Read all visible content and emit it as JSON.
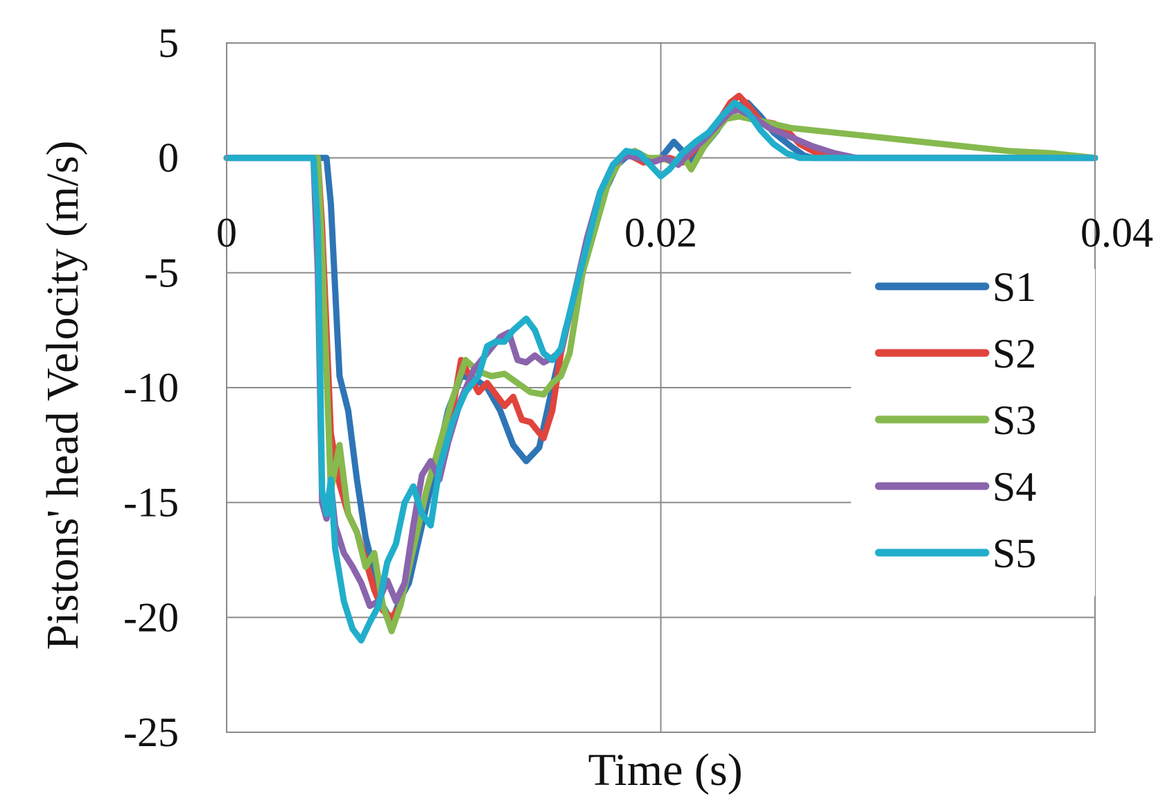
{
  "chart_data": {
    "type": "line",
    "title": "",
    "xlabel": "Time (s)",
    "ylabel": "Pistons' head Velocity (m/s)",
    "xlim": [
      0,
      0.04
    ],
    "ylim": [
      -25,
      5
    ],
    "x_ticks": [
      0,
      0.02,
      0.04
    ],
    "x_tick_labels": [
      "0",
      "0.02",
      "0.04"
    ],
    "y_ticks": [
      5,
      0,
      -5,
      -10,
      -15,
      -20,
      -25
    ],
    "y_tick_labels": [
      "5",
      "0",
      "-5",
      "-10",
      "-15",
      "-20",
      "-25"
    ],
    "grid": true,
    "legend_position": "right",
    "series": [
      {
        "name": "S1",
        "color": "#2E75B6",
        "points": [
          [
            0,
            0
          ],
          [
            0.0046,
            0
          ],
          [
            0.0048,
            -2
          ],
          [
            0.0052,
            -9.5
          ],
          [
            0.0056,
            -11
          ],
          [
            0.006,
            -14
          ],
          [
            0.0064,
            -16.5
          ],
          [
            0.0068,
            -18
          ],
          [
            0.0072,
            -19.5
          ],
          [
            0.0076,
            -20.2
          ],
          [
            0.008,
            -19.2
          ],
          [
            0.0084,
            -18.5
          ],
          [
            0.009,
            -16
          ],
          [
            0.0096,
            -13.5
          ],
          [
            0.0102,
            -11
          ],
          [
            0.0108,
            -9.5
          ],
          [
            0.0114,
            -9.6
          ],
          [
            0.012,
            -10
          ],
          [
            0.0126,
            -11
          ],
          [
            0.0132,
            -12.5
          ],
          [
            0.0138,
            -13.2
          ],
          [
            0.0144,
            -12.6
          ],
          [
            0.015,
            -10
          ],
          [
            0.0156,
            -7.5
          ],
          [
            0.0162,
            -5.5
          ],
          [
            0.0168,
            -3
          ],
          [
            0.0174,
            -1.5
          ],
          [
            0.018,
            -0.3
          ],
          [
            0.0186,
            0.2
          ],
          [
            0.019,
            0
          ],
          [
            0.0196,
            -0.2
          ],
          [
            0.02,
            0
          ],
          [
            0.0206,
            0.7
          ],
          [
            0.021,
            0.3
          ],
          [
            0.0214,
            -0.2
          ],
          [
            0.022,
            0.5
          ],
          [
            0.0226,
            1.2
          ],
          [
            0.023,
            1.8
          ],
          [
            0.0236,
            2.3
          ],
          [
            0.024,
            2.4
          ],
          [
            0.0246,
            1.8
          ],
          [
            0.0252,
            1.1
          ],
          [
            0.026,
            0.5
          ],
          [
            0.0266,
            0.1
          ],
          [
            0.027,
            0
          ],
          [
            0.04,
            0
          ]
        ]
      },
      {
        "name": "S2",
        "color": "#E0443C",
        "points": [
          [
            0,
            0
          ],
          [
            0.0042,
            0
          ],
          [
            0.0044,
            -3
          ],
          [
            0.0048,
            -12
          ],
          [
            0.0052,
            -14.2
          ],
          [
            0.0056,
            -15.5
          ],
          [
            0.006,
            -16.3
          ],
          [
            0.0064,
            -17.5
          ],
          [
            0.0068,
            -18.8
          ],
          [
            0.0072,
            -19.7
          ],
          [
            0.0076,
            -20
          ],
          [
            0.008,
            -19.5
          ],
          [
            0.0086,
            -17
          ],
          [
            0.0092,
            -14.5
          ],
          [
            0.0098,
            -12.5
          ],
          [
            0.0104,
            -11
          ],
          [
            0.0108,
            -8.8
          ],
          [
            0.0112,
            -9.5
          ],
          [
            0.0116,
            -10.2
          ],
          [
            0.012,
            -9.8
          ],
          [
            0.0124,
            -10.3
          ],
          [
            0.0128,
            -10.8
          ],
          [
            0.0132,
            -10.4
          ],
          [
            0.0136,
            -11.4
          ],
          [
            0.014,
            -11.5
          ],
          [
            0.0146,
            -12.2
          ],
          [
            0.015,
            -11
          ],
          [
            0.0154,
            -8.5
          ],
          [
            0.016,
            -6
          ],
          [
            0.0166,
            -3.5
          ],
          [
            0.0172,
            -1.5
          ],
          [
            0.0178,
            -0.3
          ],
          [
            0.0184,
            0.2
          ],
          [
            0.0188,
            0
          ],
          [
            0.0192,
            -0.2
          ],
          [
            0.0198,
            -0.1
          ],
          [
            0.0204,
            0
          ],
          [
            0.021,
            -0.2
          ],
          [
            0.0216,
            0.4
          ],
          [
            0.0222,
            1
          ],
          [
            0.0228,
            1.8
          ],
          [
            0.0232,
            2.4
          ],
          [
            0.0236,
            2.7
          ],
          [
            0.024,
            2.3
          ],
          [
            0.0246,
            1.6
          ],
          [
            0.0252,
            1.5
          ],
          [
            0.0258,
            1.2
          ],
          [
            0.0264,
            0.6
          ],
          [
            0.0272,
            0.2
          ],
          [
            0.028,
            0
          ],
          [
            0.04,
            0
          ]
        ]
      },
      {
        "name": "S3",
        "color": "#86B94E",
        "points": [
          [
            0,
            0
          ],
          [
            0.0042,
            0
          ],
          [
            0.0044,
            -4
          ],
          [
            0.0048,
            -14.5
          ],
          [
            0.0052,
            -12.5
          ],
          [
            0.0056,
            -15.5
          ],
          [
            0.006,
            -16.3
          ],
          [
            0.0064,
            -17.8
          ],
          [
            0.0068,
            -17.2
          ],
          [
            0.0072,
            -19.5
          ],
          [
            0.0076,
            -20.6
          ],
          [
            0.008,
            -19.5
          ],
          [
            0.0086,
            -17
          ],
          [
            0.0092,
            -14.5
          ],
          [
            0.0098,
            -12.5
          ],
          [
            0.0104,
            -10.5
          ],
          [
            0.011,
            -8.8
          ],
          [
            0.0116,
            -9.3
          ],
          [
            0.0122,
            -9.5
          ],
          [
            0.0128,
            -9.4
          ],
          [
            0.0134,
            -9.8
          ],
          [
            0.014,
            -10.2
          ],
          [
            0.0146,
            -10.3
          ],
          [
            0.015,
            -9.8
          ],
          [
            0.0154,
            -9.5
          ],
          [
            0.0158,
            -8.5
          ],
          [
            0.0164,
            -5
          ],
          [
            0.017,
            -3
          ],
          [
            0.0176,
            -1
          ],
          [
            0.0182,
            0
          ],
          [
            0.0188,
            0.3
          ],
          [
            0.0194,
            0
          ],
          [
            0.02,
            0
          ],
          [
            0.0206,
            -0.2
          ],
          [
            0.021,
            0.1
          ],
          [
            0.0214,
            -0.5
          ],
          [
            0.022,
            0.5
          ],
          [
            0.0224,
            1
          ],
          [
            0.023,
            1.7
          ],
          [
            0.0236,
            1.8
          ],
          [
            0.0246,
            1.6
          ],
          [
            0.026,
            1.3
          ],
          [
            0.028,
            1.1
          ],
          [
            0.03,
            0.9
          ],
          [
            0.032,
            0.7
          ],
          [
            0.034,
            0.5
          ],
          [
            0.036,
            0.3
          ],
          [
            0.038,
            0.2
          ],
          [
            0.04,
            0
          ]
        ]
      },
      {
        "name": "S4",
        "color": "#8A64AC",
        "points": [
          [
            0,
            0
          ],
          [
            0.004,
            0
          ],
          [
            0.0042,
            -5
          ],
          [
            0.0044,
            -15
          ],
          [
            0.0046,
            -15.7
          ],
          [
            0.0048,
            -14.2
          ],
          [
            0.005,
            -16
          ],
          [
            0.0054,
            -17.2
          ],
          [
            0.0058,
            -17.8
          ],
          [
            0.0062,
            -18.5
          ],
          [
            0.0066,
            -19.5
          ],
          [
            0.007,
            -19.3
          ],
          [
            0.0074,
            -18.4
          ],
          [
            0.0078,
            -19.3
          ],
          [
            0.0082,
            -18.5
          ],
          [
            0.0086,
            -16
          ],
          [
            0.009,
            -13.8
          ],
          [
            0.0094,
            -13.2
          ],
          [
            0.0098,
            -14
          ],
          [
            0.0102,
            -12.4
          ],
          [
            0.0108,
            -10.5
          ],
          [
            0.0114,
            -9.2
          ],
          [
            0.012,
            -8.5
          ],
          [
            0.0126,
            -7.8
          ],
          [
            0.013,
            -7.6
          ],
          [
            0.0134,
            -8.8
          ],
          [
            0.0138,
            -8.9
          ],
          [
            0.0142,
            -8.6
          ],
          [
            0.0146,
            -8.9
          ],
          [
            0.015,
            -8.7
          ],
          [
            0.0154,
            -8.4
          ],
          [
            0.016,
            -6
          ],
          [
            0.0166,
            -3.5
          ],
          [
            0.0172,
            -1.5
          ],
          [
            0.0178,
            -0.3
          ],
          [
            0.0184,
            0.1
          ],
          [
            0.019,
            0
          ],
          [
            0.0196,
            -0.2
          ],
          [
            0.0202,
            0
          ],
          [
            0.0208,
            -0.3
          ],
          [
            0.0214,
            0.3
          ],
          [
            0.022,
            0.8
          ],
          [
            0.0226,
            1.4
          ],
          [
            0.0232,
            2
          ],
          [
            0.0236,
            2.1
          ],
          [
            0.0242,
            1.8
          ],
          [
            0.025,
            1.3
          ],
          [
            0.026,
            0.9
          ],
          [
            0.027,
            0.5
          ],
          [
            0.028,
            0.2
          ],
          [
            0.029,
            0
          ],
          [
            0.04,
            0
          ]
        ]
      },
      {
        "name": "S5",
        "color": "#21AECB",
        "points": [
          [
            0,
            0
          ],
          [
            0.004,
            0
          ],
          [
            0.0042,
            -3
          ],
          [
            0.0044,
            -14.5
          ],
          [
            0.0046,
            -15.5
          ],
          [
            0.0048,
            -14
          ],
          [
            0.005,
            -17
          ],
          [
            0.0054,
            -19.3
          ],
          [
            0.0058,
            -20.5
          ],
          [
            0.0062,
            -21
          ],
          [
            0.0066,
            -20.2
          ],
          [
            0.007,
            -19.5
          ],
          [
            0.0074,
            -17.6
          ],
          [
            0.0078,
            -16.8
          ],
          [
            0.0082,
            -15
          ],
          [
            0.0086,
            -14.3
          ],
          [
            0.009,
            -15.5
          ],
          [
            0.0094,
            -16
          ],
          [
            0.0098,
            -13.5
          ],
          [
            0.0104,
            -11.5
          ],
          [
            0.011,
            -10.2
          ],
          [
            0.0116,
            -9.5
          ],
          [
            0.012,
            -8.2
          ],
          [
            0.0124,
            -8
          ],
          [
            0.0128,
            -8
          ],
          [
            0.0132,
            -7.5
          ],
          [
            0.0138,
            -7
          ],
          [
            0.0142,
            -7.5
          ],
          [
            0.0146,
            -8.5
          ],
          [
            0.015,
            -8.8
          ],
          [
            0.0154,
            -8.3
          ],
          [
            0.016,
            -6
          ],
          [
            0.0166,
            -3.8
          ],
          [
            0.0172,
            -1.5
          ],
          [
            0.0178,
            -0.3
          ],
          [
            0.0184,
            0.3
          ],
          [
            0.019,
            0.2
          ],
          [
            0.0196,
            -0.4
          ],
          [
            0.02,
            -0.8
          ],
          [
            0.0204,
            -0.5
          ],
          [
            0.021,
            0.2
          ],
          [
            0.0216,
            0.7
          ],
          [
            0.0222,
            1.1
          ],
          [
            0.0228,
            1.8
          ],
          [
            0.0234,
            2.4
          ],
          [
            0.024,
            2
          ],
          [
            0.0246,
            1.2
          ],
          [
            0.0252,
            0.6
          ],
          [
            0.0258,
            0.2
          ],
          [
            0.0264,
            0
          ],
          [
            0.04,
            0
          ]
        ]
      }
    ]
  }
}
